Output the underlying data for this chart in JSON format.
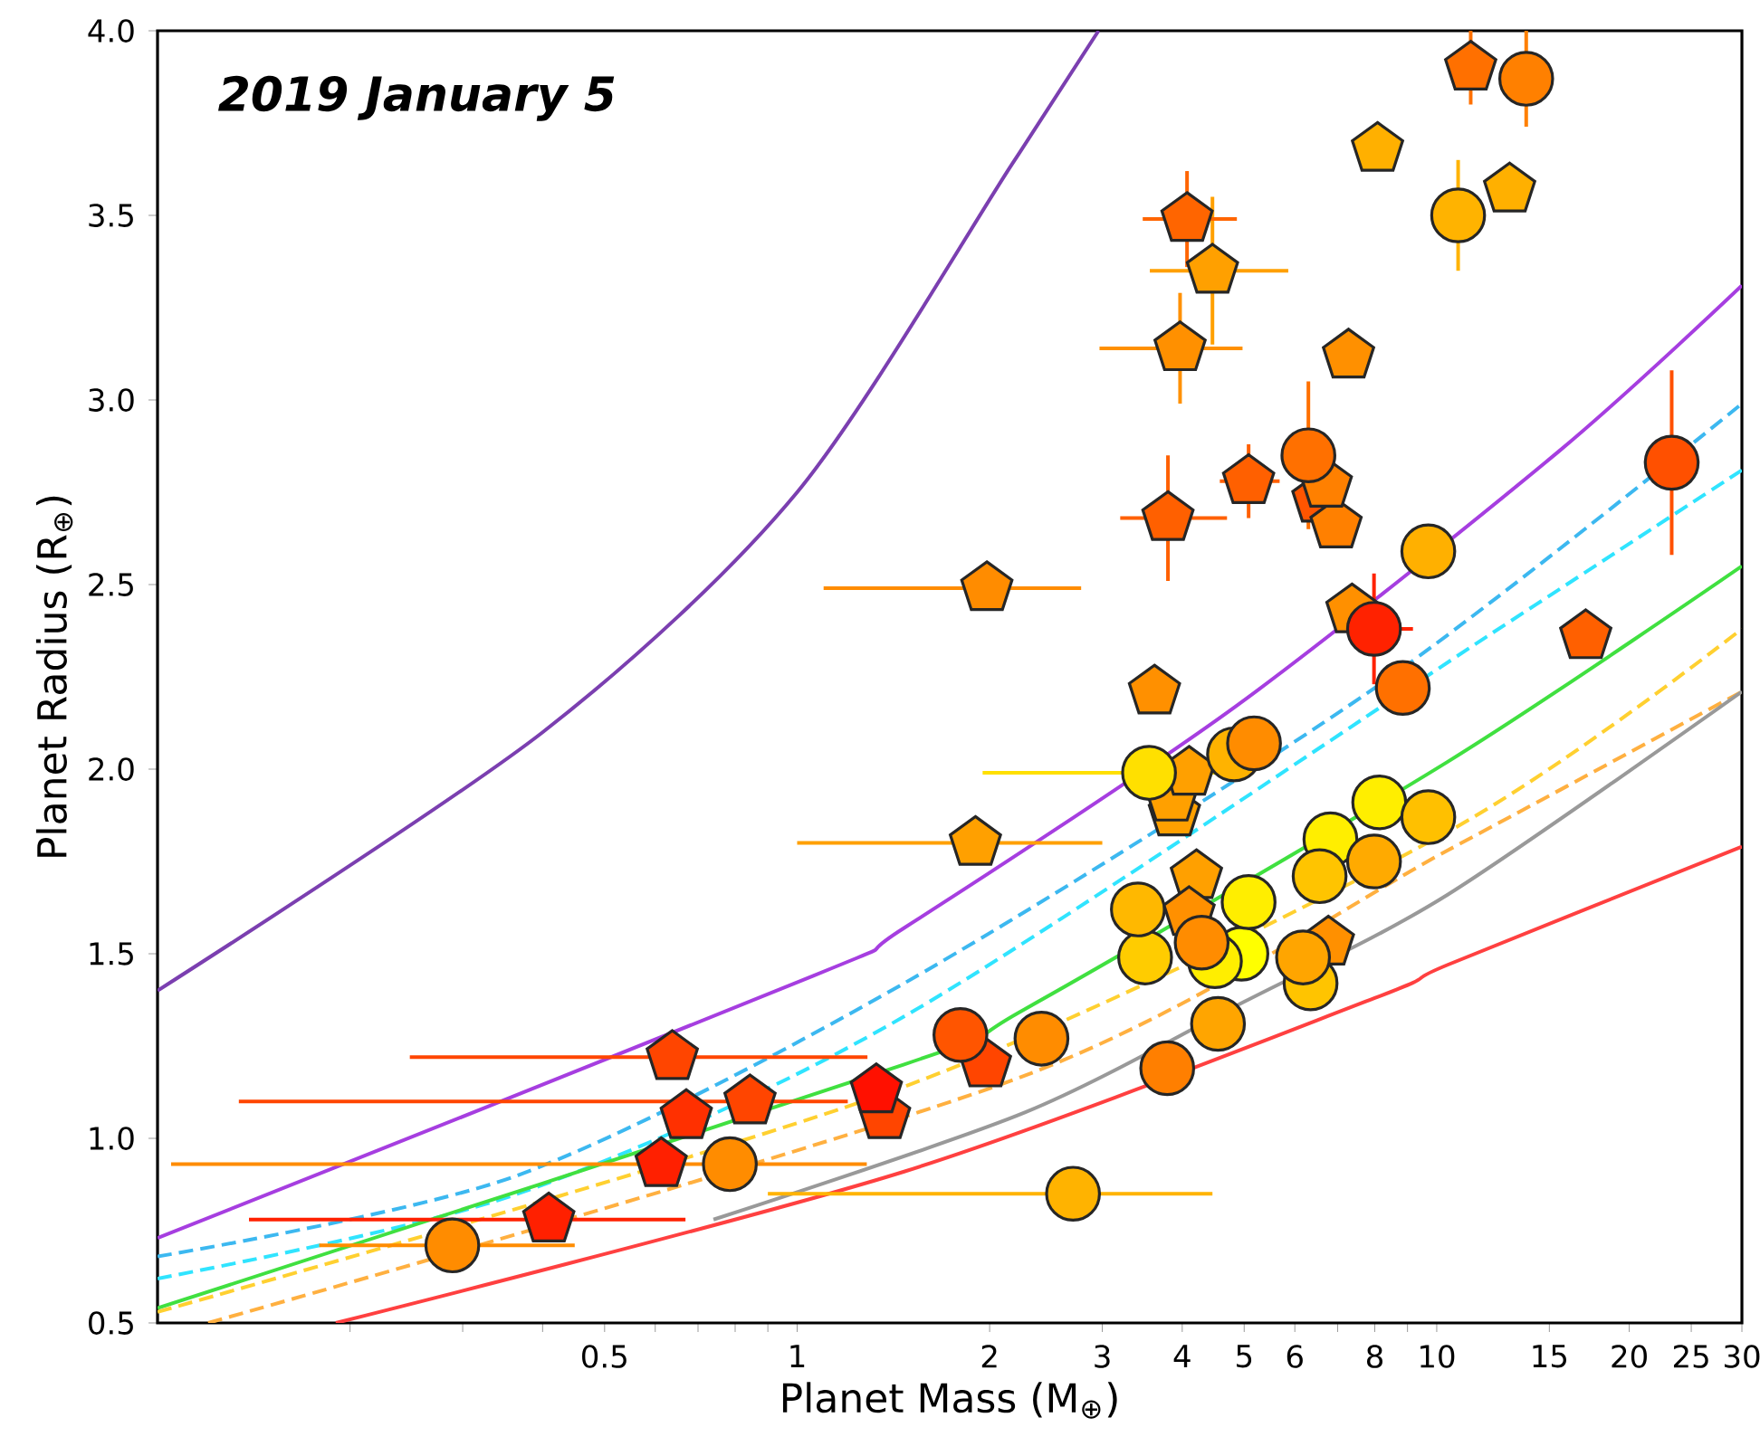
{
  "chart_data": {
    "type": "scatter",
    "title": "2019 January 5",
    "xlabel": "Planet Mass (M$_{⊕}$)",
    "ylabel": "Planet Radius (R$_{⊕}$)",
    "log": "x",
    "xlim": [
      0.1,
      30
    ],
    "ylim": [
      0.5,
      4.0
    ],
    "xticks": [
      {
        "value": 0.2,
        "label": null
      },
      {
        "value": 0.3,
        "label": null
      },
      {
        "value": 0.4,
        "label": null
      },
      0.5,
      {
        "value": 0.6,
        "label": null
      },
      {
        "value": 0.7,
        "label": null
      },
      {
        "value": 0.8,
        "label": null
      },
      {
        "value": 0.9,
        "label": null
      },
      1,
      2,
      3,
      4,
      5,
      6,
      {
        "value": 7,
        "label": null
      },
      8,
      {
        "value": 9,
        "label": null
      },
      10,
      15,
      20,
      25,
      30
    ],
    "yticks": [
      0.5,
      {
        "value": 1,
        "label": "1.0"
      },
      1.5,
      {
        "value": 2,
        "label": "2.0"
      },
      2.5,
      {
        "value": 3,
        "label": "3.0"
      },
      3.5,
      {
        "value": 4,
        "label": "4.0"
      }
    ],
    "series": [
      {
        "type": "line",
        "color": "#7b3fb0",
        "line_style": "solid",
        "x": [
          0.1,
          0.4,
          1,
          2.17,
          2.96
        ],
        "values": [
          1.4,
          2.1,
          2.75,
          3.64,
          4.0
        ]
      },
      {
        "type": "line",
        "color": "#a63ee0",
        "line_style": "solid",
        "x": [
          0.1,
          1.06,
          1.47,
          4.85,
          15.5,
          30
        ],
        "values": [
          0.73,
          1.44,
          1.57,
          2.17,
          2.86,
          3.31
        ]
      },
      {
        "type": "line",
        "color": "#3cb8f0",
        "line_style": "dashed",
        "x": [
          0.1,
          0.366,
          1.47,
          8,
          30
        ],
        "values": [
          0.68,
          0.9,
          1.42,
          2.22,
          2.99
        ]
      },
      {
        "type": "line",
        "color": "#30e4ff",
        "line_style": "dashed",
        "x": [
          0.1,
          0.366,
          1.47,
          12,
          30
        ],
        "values": [
          0.62,
          0.85,
          1.33,
          2.36,
          2.81
        ]
      },
      {
        "type": "line",
        "color": "#40e040",
        "line_style": "solid",
        "x": [
          0.1,
          1.47,
          2.27,
          10.4,
          30
        ],
        "values": [
          0.54,
          1.2,
          1.35,
          2.02,
          2.55
        ]
      },
      {
        "type": "line",
        "color": "#ffd030",
        "line_style": "dashed",
        "x": [
          0.1,
          1.47,
          10.4,
          30
        ],
        "values": [
          0.53,
          1.14,
          1.83,
          2.38
        ]
      },
      {
        "type": "line",
        "color": "#ffb040",
        "line_style": "dashed",
        "x": [
          0.12,
          2.27,
          10.4,
          30
        ],
        "values": [
          0.5,
          1.17,
          1.78,
          2.21
        ]
      },
      {
        "type": "line",
        "color": "#999999",
        "line_style": "solid",
        "x": [
          0.74,
          2.27,
          5,
          10.4,
          30
        ],
        "values": [
          0.78,
          1.07,
          1.37,
          1.66,
          2.21
        ]
      },
      {
        "type": "line",
        "color": "#ff4040",
        "line_style": "solid",
        "x": [
          0.19,
          1.47,
          8,
          10.4,
          30
        ],
        "values": [
          0.5,
          0.91,
          1.38,
          1.47,
          1.79
        ]
      },
      {
        "x": [
          0.409,
          0.613,
          0.671,
          0.638,
          0.844,
          1.37,
          1.33,
          1.97,
          1.98,
          1.9,
          3.62,
          3.89,
          3.85,
          4.1,
          4.21,
          4.1,
          6.77,
          3.8,
          5.08,
          6.52,
          6.96,
          6.72,
          7.28,
          3.97,
          4.46,
          4.07,
          8.08,
          11.3,
          13.0,
          17.1,
          7.37
        ],
        "values": [
          0.78,
          0.93,
          1.06,
          1.22,
          1.1,
          1.06,
          1.13,
          1.2,
          2.49,
          1.8,
          2.21,
          1.88,
          1.92,
          1.99,
          1.71,
          1.61,
          1.53,
          2.68,
          2.78,
          2.73,
          2.66,
          2.77,
          3.12,
          3.14,
          3.35,
          3.49,
          3.68,
          3.9,
          3.57,
          2.36,
          2.43
        ],
        "colors": [
          "#ff2000",
          "#ff2000",
          "#ff3000",
          "#ff4500",
          "#ff4500",
          "#ff4500",
          "#ff1000",
          "#ff4500",
          "#ff8c00",
          "#ffa000",
          "#ff9000",
          "#ffa000",
          "#ffa000",
          "#ffa000",
          "#ffa000",
          "#ff9000",
          "#ff9000",
          "#ff6000",
          "#ff6000",
          "#ff5500",
          "#ff8000",
          "#ff8000",
          "#ff9000",
          "#ff9000",
          "#ffa000",
          "#ff6500",
          "#ffb000",
          "#ff7000",
          "#ffb000",
          "#ff6000",
          "#ff9000"
        ],
        "errors": [
          null,
          null,
          null,
          null,
          null,
          null,
          null,
          null,
          null,
          null,
          null,
          null,
          null,
          null,
          null,
          null,
          null,
          0.17,
          0.1,
          null,
          null,
          null,
          null,
          0.15,
          0.2,
          0.13,
          null,
          0.1,
          null,
          null,
          null
        ],
        "xerrors": [
          [
            0.139,
            0.669
          ],
          null,
          null,
          [
            0.248,
            1.288
          ],
          [
            0.134,
            1.2
          ],
          null,
          null,
          null,
          [
            1.1,
            2.78
          ],
          [
            1.0,
            3.0
          ],
          null,
          null,
          null,
          null,
          null,
          null,
          null,
          [
            3.2,
            4.7
          ],
          [
            4.58,
            5.68
          ],
          null,
          null,
          null,
          null,
          [
            2.97,
            4.97
          ],
          [
            3.56,
            5.86
          ],
          [
            3.47,
            4.87
          ],
          null,
          null,
          null,
          null,
          null
        ]
      },
      {
        "marker": "circle",
        "x": [
          0.289,
          0.785,
          2.7,
          1.8,
          2.41,
          3.79,
          4.55,
          6.35,
          6.18,
          4.95,
          4.5,
          4.29,
          3.5,
          3.41,
          5.08,
          3.55,
          4.82,
          5.18,
          6.82,
          6.56,
          7.98,
          8.13,
          9.7,
          9.7,
          7.98,
          8.85,
          23.3,
          6.3,
          10.8,
          13.8
        ],
        "values": [
          0.71,
          0.93,
          0.85,
          1.28,
          1.27,
          1.19,
          1.31,
          1.42,
          1.49,
          1.5,
          1.48,
          1.53,
          1.49,
          1.62,
          1.64,
          1.99,
          2.04,
          2.07,
          1.81,
          1.71,
          1.75,
          1.91,
          1.87,
          2.59,
          2.38,
          2.22,
          2.83,
          2.85,
          3.5,
          3.87
        ],
        "colors": [
          "#ff8c00",
          "#ff8c00",
          "#ffb300",
          "#ff5500",
          "#ff8c00",
          "#ff7f00",
          "#ffa500",
          "#ffc400",
          "#ffa500",
          "#ffff00",
          "#ffee00",
          "#ff8c00",
          "#ffcc00",
          "#ffb800",
          "#ffee00",
          "#ffe000",
          "#ffb300",
          "#ff8c00",
          "#ffee00",
          "#ffc400",
          "#ffaa00",
          "#ffee00",
          "#ffc000",
          "#ffb000",
          "#ff2200",
          "#ff7000",
          "#ff5000",
          "#ff7000",
          "#ffb300",
          "#ff8000"
        ],
        "errors": [
          null,
          null,
          null,
          null,
          null,
          null,
          null,
          null,
          null,
          null,
          null,
          null,
          null,
          null,
          null,
          null,
          null,
          null,
          null,
          null,
          null,
          null,
          null,
          null,
          0.15,
          null,
          0.25,
          0.2,
          0.15,
          0.13
        ],
        "xerrors": [
          [
            0.179,
            0.449
          ],
          [
            0.105,
            1.285
          ],
          [
            0.9,
            4.46
          ],
          null,
          null,
          null,
          null,
          null,
          null,
          null,
          null,
          null,
          null,
          null,
          null,
          [
            1.95,
            4.75
          ],
          null,
          null,
          null,
          null,
          null,
          null,
          null,
          null,
          [
            7.08,
            9.18
          ],
          null,
          null,
          null,
          null,
          null
        ]
      }
    ]
  }
}
